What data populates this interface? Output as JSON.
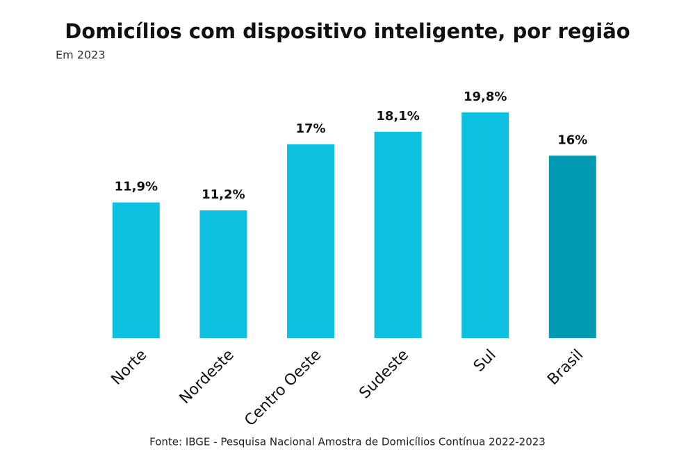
{
  "chart_data": {
    "type": "bar",
    "title": "Domicílios com dispositivo inteligente, por região",
    "subtitle": "Em 2023",
    "source": "Fonte: IBGE - Pesquisa Nacional Amostra de Domicílios Contínua 2022-2023",
    "categories": [
      "Norte",
      "Nordeste",
      "Centro Oeste",
      "Sudeste",
      "Sul",
      "Brasil"
    ],
    "values": [
      11.9,
      11.2,
      17,
      18.1,
      19.8,
      16
    ],
    "value_labels": [
      "11,9%",
      "11,2%",
      "17%",
      "18,1%",
      "19,8%",
      "16%"
    ],
    "colors": [
      "#0dc0e0",
      "#0dc0e0",
      "#0dc0e0",
      "#0dc0e0",
      "#0dc0e0",
      "#0299b2"
    ]
  }
}
